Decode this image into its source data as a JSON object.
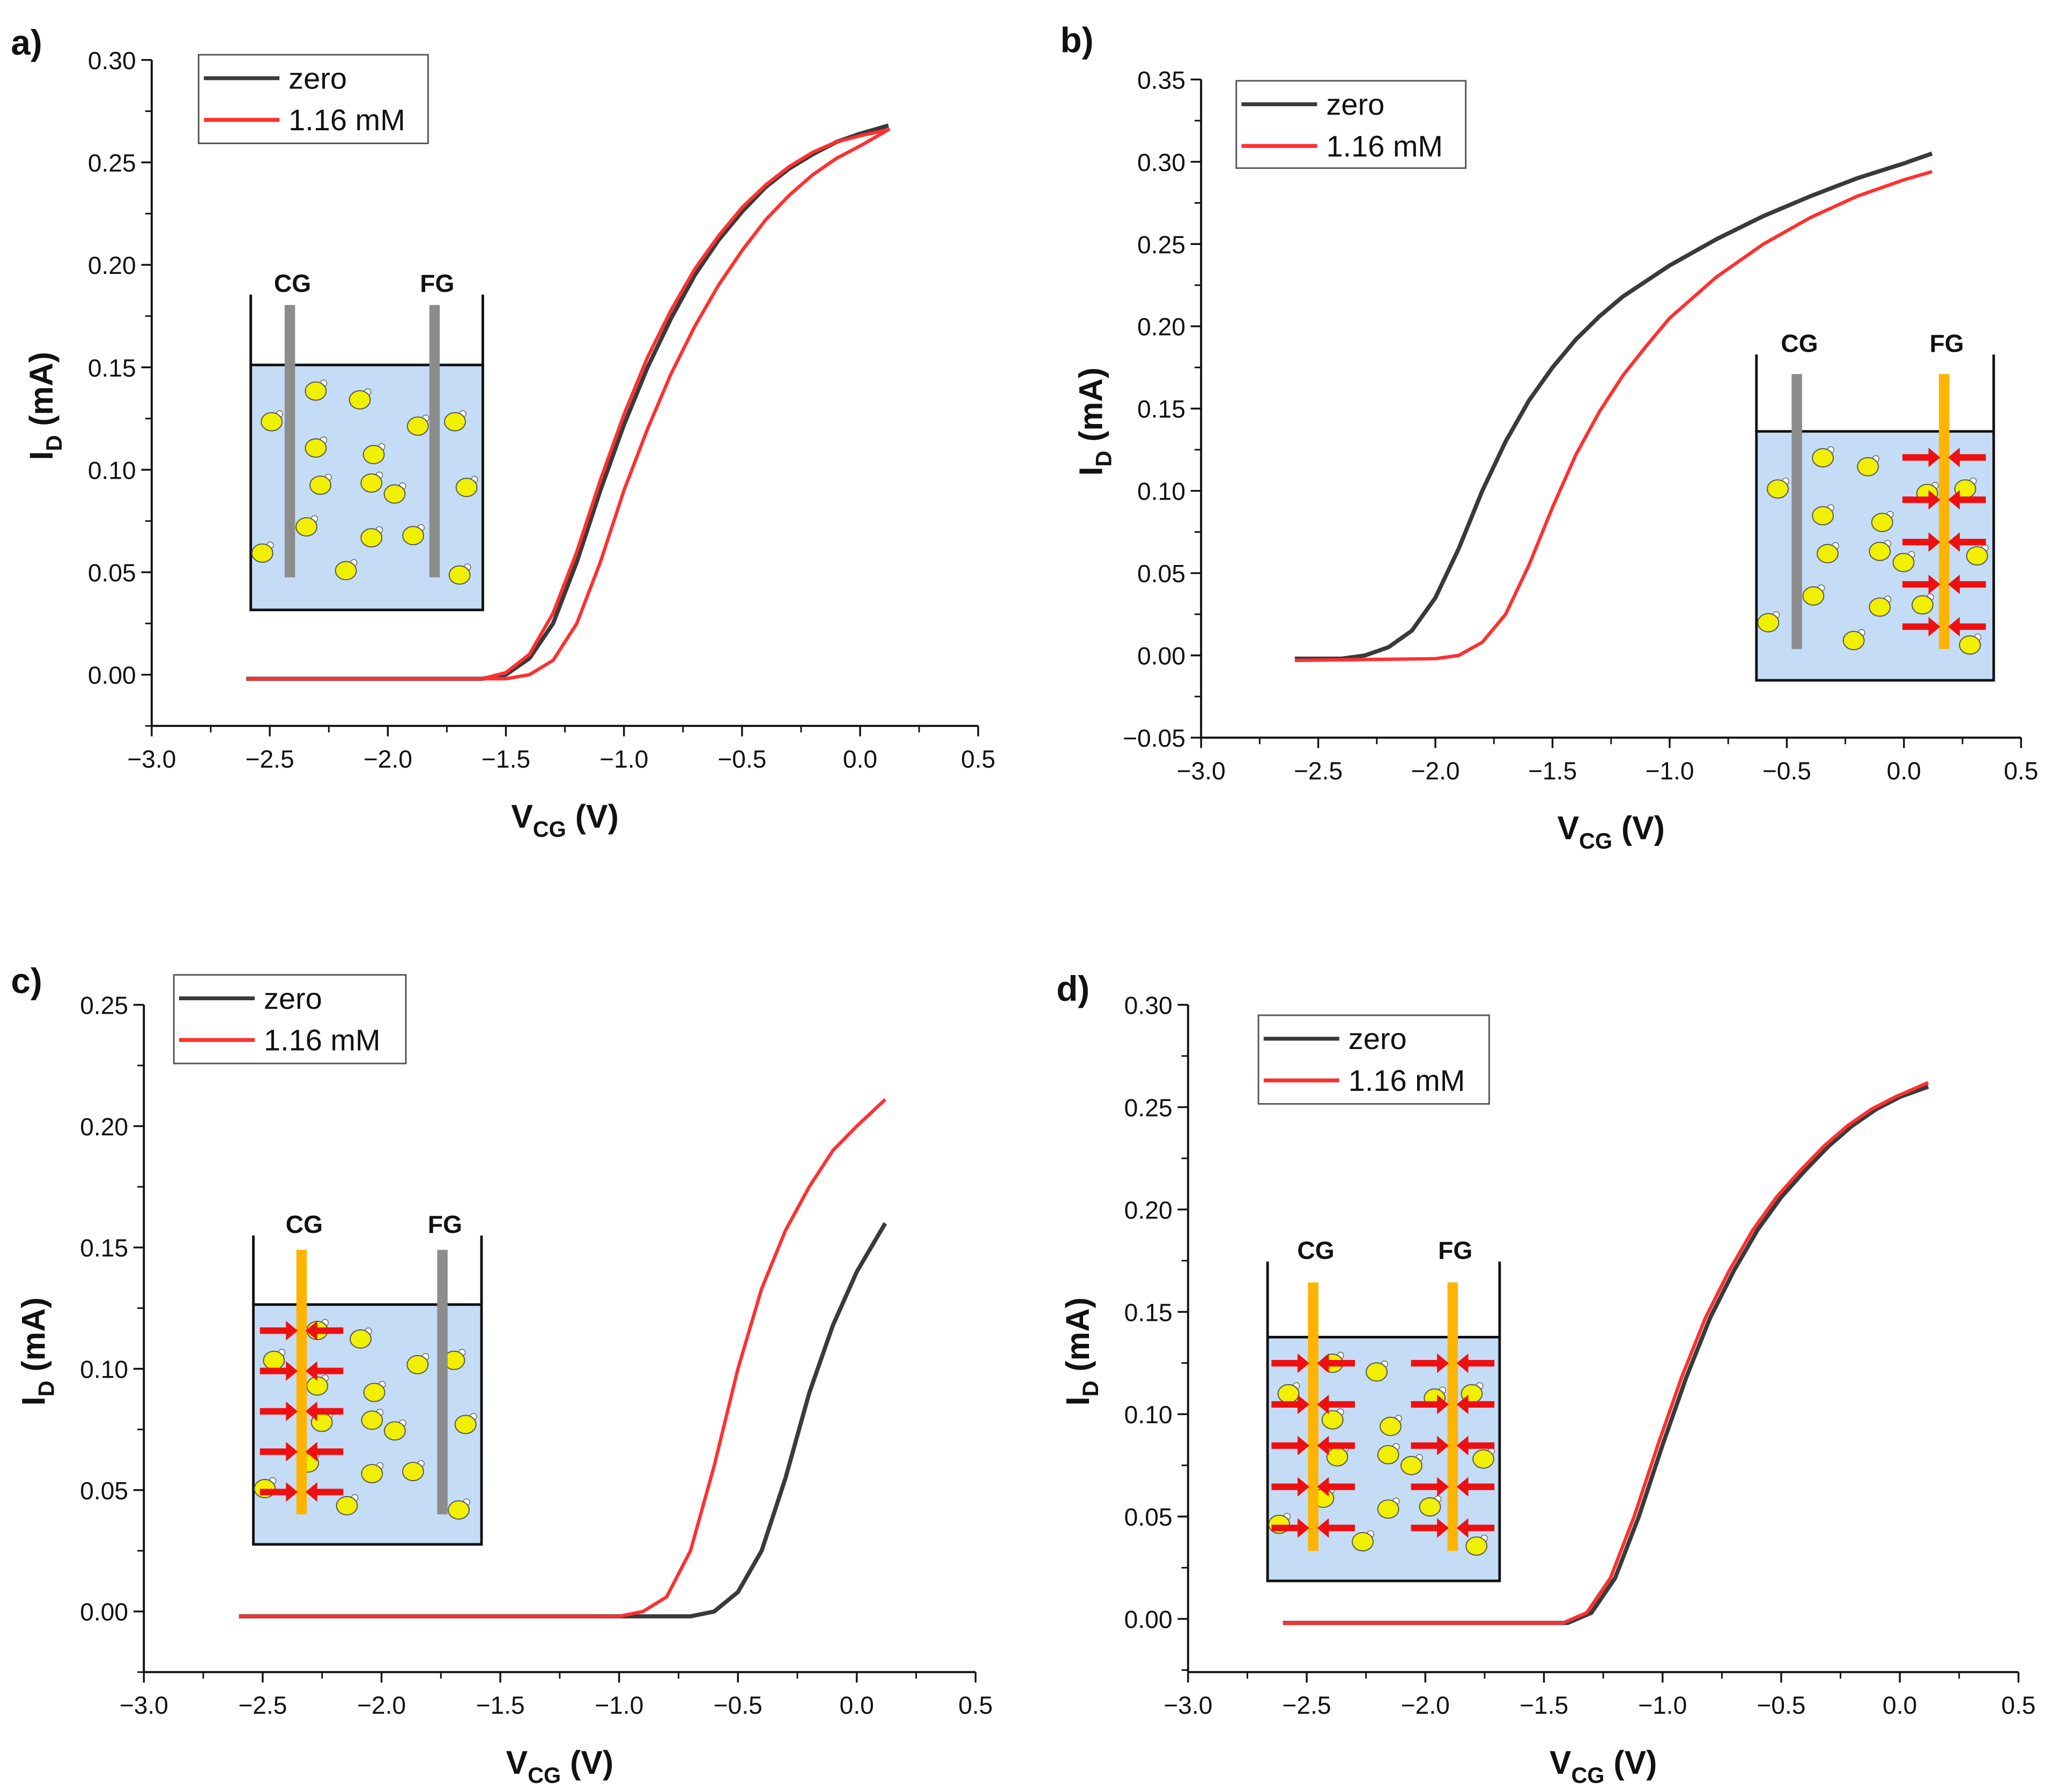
{
  "colors": {
    "zero": "#3a3a3a",
    "mM": "#ff3030",
    "liquid": "#c4dcf6",
    "gray_electrode": "#8c8c8c",
    "active_electrode": "#ffb400",
    "particle": "#f0f000",
    "arrow": "#ee1010"
  },
  "chart_data": [
    {
      "type": "line",
      "panel_label": "a)",
      "xlabel_main": "V",
      "xlabel_sub": "CG",
      "xlabel_unit": " (V)",
      "ylabel_main": "I",
      "ylabel_sub": "D",
      "ylabel_unit": " (mA)",
      "xlim": [
        -3.0,
        0.5
      ],
      "ylim": [
        -0.025,
        0.3
      ],
      "xticks": [
        "-3.0",
        "-2.5",
        "-2.0",
        "-1.5",
        "-1.0",
        "-0.5",
        "0.0",
        "0.5"
      ],
      "yticks": [
        "0.00",
        "0.05",
        "0.10",
        "0.15",
        "0.20",
        "0.25",
        "0.30"
      ],
      "legend": [
        "zero",
        "1.16 mM"
      ],
      "legend_position": "top-left",
      "inset": {
        "left_label": "CG",
        "right_label": "FG",
        "left_electrode": "gray",
        "right_electrode": "gray",
        "left_arrows": false,
        "right_arrows": false
      },
      "series": [
        {
          "name": "zero",
          "x": [
            -2.6,
            -1.6,
            -1.5,
            -1.4,
            -1.3,
            -1.2,
            -1.1,
            -1.0,
            -0.9,
            -0.8,
            -0.7,
            -0.6,
            -0.5,
            -0.4,
            -0.3,
            -0.2,
            -0.1,
            0.0,
            0.12
          ],
          "y": [
            -0.002,
            -0.002,
            0.0,
            0.008,
            0.025,
            0.055,
            0.09,
            0.122,
            0.15,
            0.174,
            0.195,
            0.212,
            0.226,
            0.238,
            0.247,
            0.254,
            0.26,
            0.264,
            0.268
          ]
        },
        {
          "name": "1.16 mM",
          "x": [
            -2.6,
            -1.6,
            -1.5,
            -1.4,
            -1.3,
            -1.2,
            -1.1,
            -1.0,
            -0.9,
            -0.8,
            -0.7,
            -0.6,
            -0.5,
            -0.4,
            -0.3,
            -0.2,
            -0.1,
            0.0,
            0.12,
            0.0,
            -0.1,
            -0.2,
            -0.3,
            -0.4,
            -0.5,
            -0.6,
            -0.7,
            -0.8,
            -0.9,
            -1.0,
            -1.1,
            -1.2,
            -1.3,
            -1.4,
            -1.5,
            -2.6
          ],
          "y": [
            -0.002,
            -0.002,
            0.001,
            0.01,
            0.03,
            0.06,
            0.095,
            0.127,
            0.155,
            0.178,
            0.198,
            0.214,
            0.228,
            0.239,
            0.248,
            0.255,
            0.26,
            0.263,
            0.266,
            0.258,
            0.252,
            0.244,
            0.234,
            0.222,
            0.207,
            0.19,
            0.17,
            0.147,
            0.12,
            0.09,
            0.055,
            0.025,
            0.007,
            0.0,
            -0.002,
            -0.002
          ]
        }
      ]
    },
    {
      "type": "line",
      "panel_label": "b)",
      "xlabel_main": "V",
      "xlabel_sub": "CG",
      "xlabel_unit": " (V)",
      "ylabel_main": "I",
      "ylabel_sub": "D",
      "ylabel_unit": " (mA)",
      "xlim": [
        -3.0,
        0.5
      ],
      "ylim": [
        -0.05,
        0.35
      ],
      "xticks": [
        "-3.0",
        "-2.5",
        "-2.0",
        "-1.5",
        "-1.0",
        "-0.5",
        "0.0",
        "0.5"
      ],
      "yticks": [
        "-0.05",
        "0.00",
        "0.05",
        "0.10",
        "0.15",
        "0.20",
        "0.25",
        "0.30",
        "0.35"
      ],
      "legend": [
        "zero",
        "1.16 mM"
      ],
      "legend_position": "top-left",
      "inset": {
        "left_label": "CG",
        "right_label": "FG",
        "left_electrode": "gray",
        "right_electrode": "active",
        "left_arrows": false,
        "right_arrows": true
      },
      "series": [
        {
          "name": "zero",
          "x": [
            -2.6,
            -2.4,
            -2.3,
            -2.2,
            -2.1,
            -2.0,
            -1.9,
            -1.8,
            -1.7,
            -1.6,
            -1.5,
            -1.4,
            -1.3,
            -1.2,
            -1.0,
            -0.8,
            -0.6,
            -0.4,
            -0.2,
            0.0,
            0.12
          ],
          "y": [
            -0.002,
            -0.002,
            0.0,
            0.005,
            0.015,
            0.035,
            0.065,
            0.1,
            0.13,
            0.155,
            0.175,
            0.192,
            0.206,
            0.218,
            0.237,
            0.253,
            0.267,
            0.279,
            0.29,
            0.299,
            0.305
          ]
        },
        {
          "name": "1.16 mM",
          "x": [
            -2.6,
            -2.0,
            -1.9,
            -1.8,
            -1.7,
            -1.6,
            -1.5,
            -1.4,
            -1.3,
            -1.2,
            -1.1,
            -1.0,
            -0.8,
            -0.6,
            -0.4,
            -0.2,
            0.0,
            0.12
          ],
          "y": [
            -0.003,
            -0.002,
            0.0,
            0.008,
            0.025,
            0.055,
            0.09,
            0.122,
            0.148,
            0.17,
            0.188,
            0.205,
            0.23,
            0.25,
            0.266,
            0.279,
            0.289,
            0.294
          ]
        }
      ]
    },
    {
      "type": "line",
      "panel_label": "c)",
      "xlabel_main": "V",
      "xlabel_sub": "CG",
      "xlabel_unit": " (V)",
      "ylabel_main": "I",
      "ylabel_sub": "D",
      "ylabel_unit": " (mA)",
      "xlim": [
        -3.0,
        0.5
      ],
      "ylim": [
        -0.025,
        0.25
      ],
      "xticks": [
        "-3.0",
        "-2.5",
        "-2.0",
        "-1.5",
        "-1.0",
        "-0.5",
        "0.0",
        "0.5"
      ],
      "yticks": [
        "0.00",
        "0.05",
        "0.10",
        "0.15",
        "0.20",
        "0.25"
      ],
      "legend": [
        "zero",
        "1.16 mM"
      ],
      "legend_position": "top-left",
      "inset": {
        "left_label": "CG",
        "right_label": "FG",
        "left_electrode": "active",
        "right_electrode": "gray",
        "left_arrows": true,
        "right_arrows": false
      },
      "series": [
        {
          "name": "zero",
          "x": [
            -2.6,
            -0.7,
            -0.6,
            -0.5,
            -0.4,
            -0.3,
            -0.2,
            -0.1,
            0.0,
            0.12
          ],
          "y": [
            -0.002,
            -0.002,
            0.0,
            0.008,
            0.025,
            0.055,
            0.09,
            0.118,
            0.14,
            0.16
          ]
        },
        {
          "name": "1.16 mM",
          "x": [
            -2.6,
            -1.0,
            -0.9,
            -0.8,
            -0.7,
            -0.6,
            -0.5,
            -0.4,
            -0.3,
            -0.2,
            -0.1,
            0.0,
            0.12
          ],
          "y": [
            -0.002,
            -0.002,
            0.0,
            0.006,
            0.025,
            0.06,
            0.1,
            0.133,
            0.157,
            0.175,
            0.19,
            0.2,
            0.211
          ]
        }
      ]
    },
    {
      "type": "line",
      "panel_label": "d)",
      "xlabel_main": "V",
      "xlabel_sub": "CG",
      "xlabel_unit": " (V)",
      "ylabel_main": "I",
      "ylabel_sub": "D",
      "ylabel_unit": " (mA)",
      "xlim": [
        -3.0,
        0.5
      ],
      "ylim": [
        -0.026,
        0.3
      ],
      "xticks": [
        "-3.0",
        "-2.5",
        "-2.0",
        "-1.5",
        "-1.0",
        "-0.5",
        "0.0",
        "0.5"
      ],
      "yticks": [
        "0.00",
        "0.05",
        "0.10",
        "0.15",
        "0.20",
        "0.25",
        "0.30"
      ],
      "legend": [
        "zero",
        "1.16 mM"
      ],
      "legend_position": "top-left",
      "inset": {
        "left_label": "CG",
        "right_label": "FG",
        "left_electrode": "active",
        "right_electrode": "active",
        "left_arrows": true,
        "right_arrows": true
      },
      "series": [
        {
          "name": "zero",
          "x": [
            -2.6,
            -1.4,
            -1.3,
            -1.2,
            -1.1,
            -1.0,
            -0.9,
            -0.8,
            -0.7,
            -0.6,
            -0.5,
            -0.4,
            -0.3,
            -0.2,
            -0.1,
            0.0,
            0.12
          ],
          "y": [
            -0.002,
            -0.002,
            0.003,
            0.02,
            0.05,
            0.085,
            0.118,
            0.147,
            0.17,
            0.19,
            0.206,
            0.219,
            0.231,
            0.241,
            0.249,
            0.255,
            0.26
          ]
        },
        {
          "name": "1.16 mM",
          "x": [
            -2.6,
            -1.42,
            -1.32,
            -1.22,
            -1.12,
            -1.02,
            -0.92,
            -0.82,
            -0.72,
            -0.62,
            -0.52,
            -0.42,
            -0.32,
            -0.22,
            -0.12,
            -0.02,
            0.12
          ],
          "y": [
            -0.002,
            -0.002,
            0.003,
            0.02,
            0.05,
            0.085,
            0.118,
            0.147,
            0.17,
            0.19,
            0.206,
            0.219,
            0.231,
            0.241,
            0.249,
            0.255,
            0.262
          ]
        }
      ]
    }
  ]
}
